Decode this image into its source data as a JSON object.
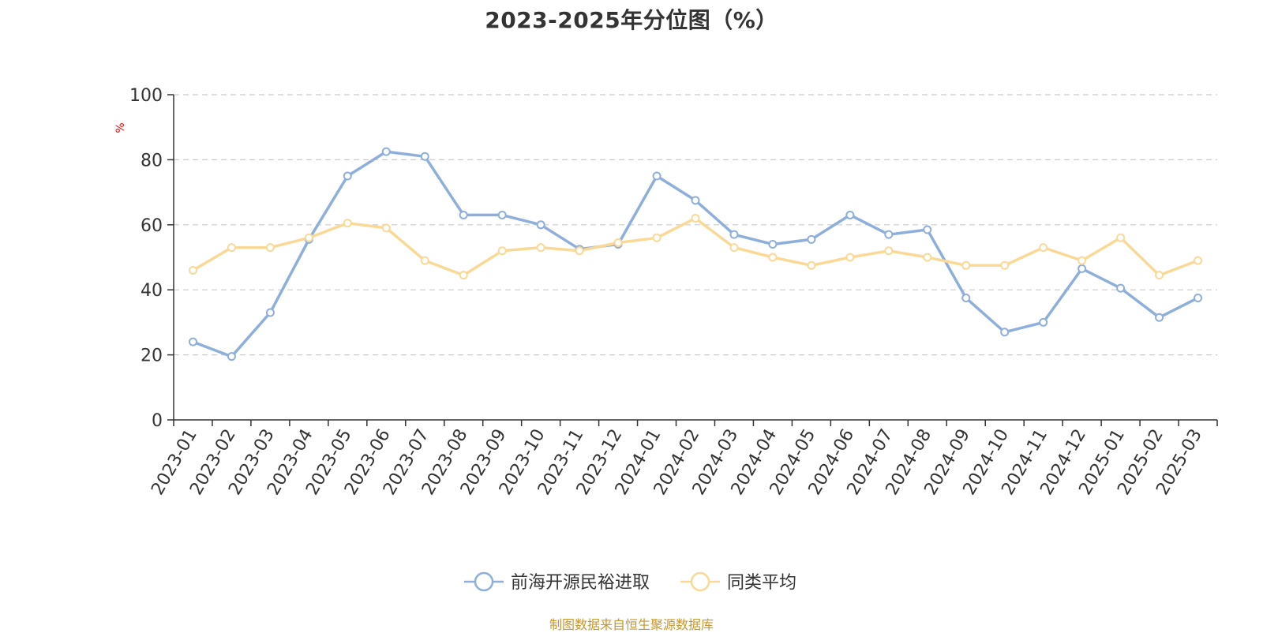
{
  "colors": {
    "series_1": "#8eaedb",
    "series_2": "#fad996",
    "unit": "#ff0000",
    "source": "#c8962e",
    "grid": "#cccccc",
    "axis": "#333333"
  },
  "source_note": "制图数据来自恒生聚源数据库",
  "chart_data": {
    "type": "line",
    "title": "2023-2025年分位图（%）",
    "ylabel": "%",
    "ylim": [
      0,
      100
    ],
    "yticks": [
      0,
      20,
      40,
      60,
      80,
      100
    ],
    "grid": true,
    "legend_position": "bottom-center",
    "categories": [
      "2023-01",
      "2023-02",
      "2023-03",
      "2023-04",
      "2023-05",
      "2023-06",
      "2023-07",
      "2023-08",
      "2023-09",
      "2023-10",
      "2023-11",
      "2023-12",
      "2024-01",
      "2024-02",
      "2024-03",
      "2024-04",
      "2024-05",
      "2024-06",
      "2024-07",
      "2024-08",
      "2024-09",
      "2024-10",
      "2024-11",
      "2024-12",
      "2025-01",
      "2025-02",
      "2025-03"
    ],
    "series": [
      {
        "name": "前海开源民裕进取",
        "values": [
          24.0,
          19.5,
          33.0,
          55.5,
          75.0,
          82.5,
          81.0,
          63.0,
          63.0,
          60.0,
          52.5,
          54.0,
          75.0,
          67.5,
          57.0,
          54.0,
          55.5,
          63.0,
          57.0,
          58.5,
          37.5,
          27.0,
          30.0,
          46.5,
          40.5,
          31.5,
          37.5
        ]
      },
      {
        "name": "同类平均",
        "values": [
          46.0,
          53.0,
          53.0,
          56.0,
          60.5,
          59.0,
          49.0,
          44.5,
          52.0,
          53.0,
          52.0,
          54.5,
          56.0,
          62.0,
          53.0,
          50.0,
          47.5,
          50.0,
          52.0,
          50.0,
          47.5,
          47.5,
          53.0,
          49.0,
          56.0,
          44.5,
          49.0
        ]
      }
    ]
  }
}
